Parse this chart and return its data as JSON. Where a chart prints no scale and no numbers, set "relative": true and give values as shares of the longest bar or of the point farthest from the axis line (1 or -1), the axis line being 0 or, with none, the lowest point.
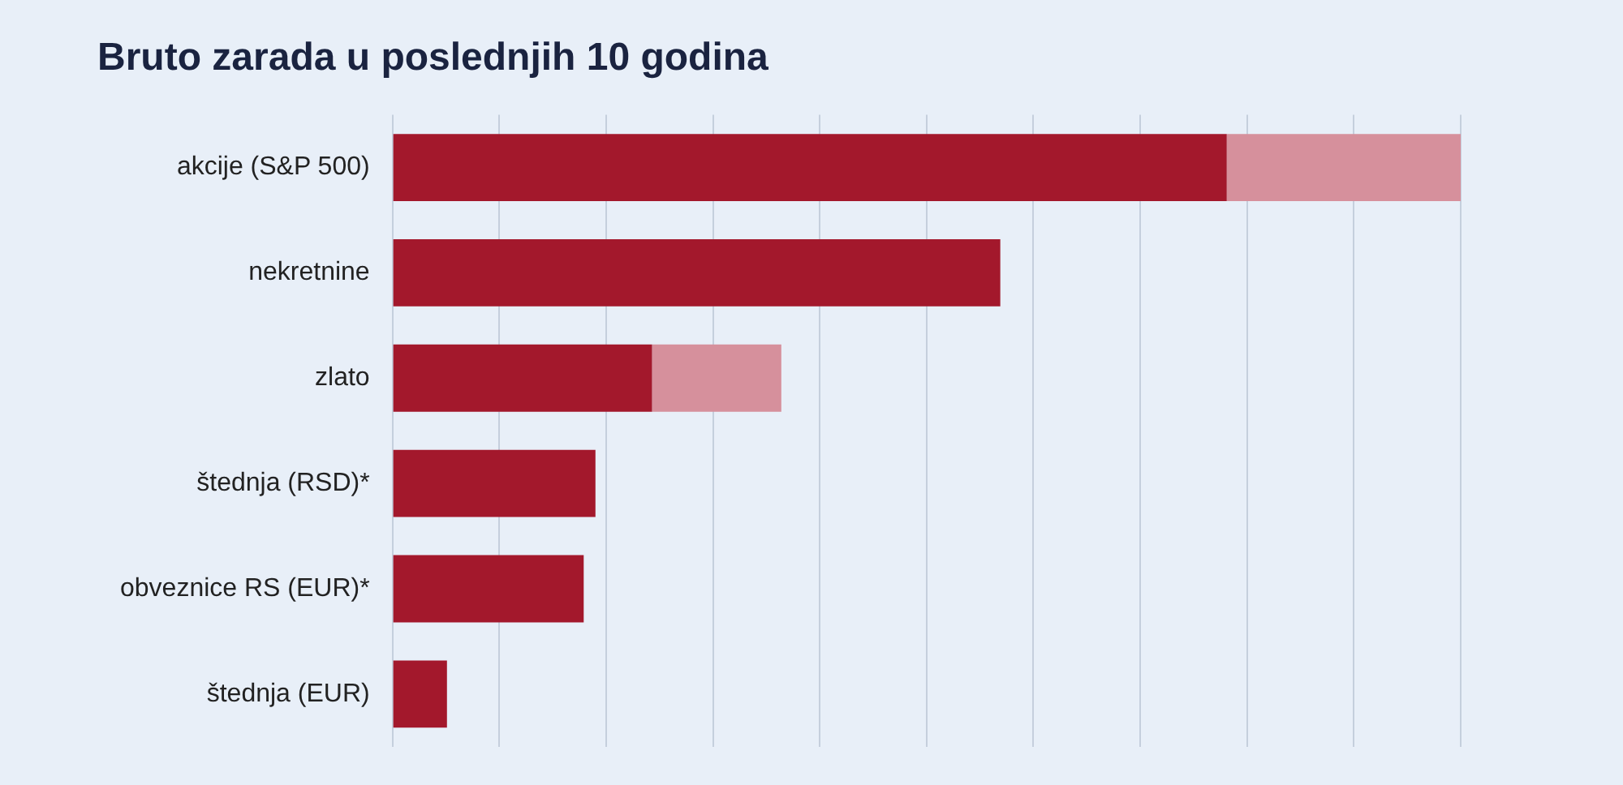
{
  "chart_data": {
    "type": "bar",
    "title": "Bruto zarada u poslednjih 10 godina",
    "orientation": "horizontal",
    "stacked": true,
    "relative": true,
    "grid": "x",
    "legend": false,
    "categories": [
      "akcije (S&P 500)",
      "nekretnine",
      "zlato",
      "štednja (RSD)*",
      "obveznice RS (EUR)*",
      "štednja (EUR)"
    ],
    "series": [
      {
        "color": "#a3182c",
        "values": [
          0.781,
          0.569,
          0.243,
          0.19,
          0.179,
          0.051
        ]
      },
      {
        "color": "#d6909c",
        "values": [
          0.219,
          null,
          0.121,
          null,
          null,
          null
        ]
      }
    ]
  }
}
